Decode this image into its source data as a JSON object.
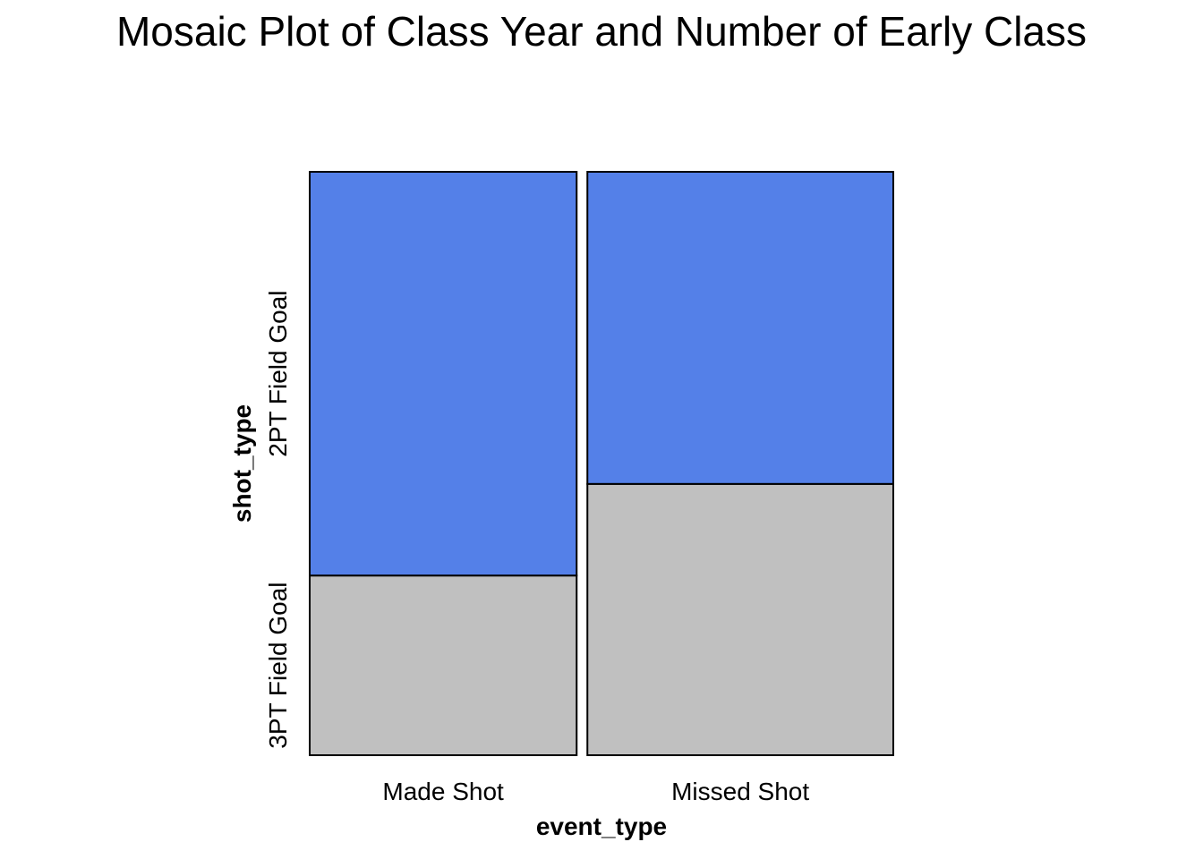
{
  "chart_data": {
    "type": "mosaic",
    "title": "Mosaic Plot of Class Year and Number of Early Class",
    "xlabel": "event_type",
    "ylabel": "shot_type",
    "x_categories": [
      "Made Shot",
      "Missed Shot"
    ],
    "x_proportions": [
      0.466,
      0.534
    ],
    "y_categories": [
      "3PT Field Goal",
      "2PT Field Goal"
    ],
    "conditional_proportions": {
      "Made Shot": {
        "3PT Field Goal": 0.308,
        "2PT Field Goal": 0.692
      },
      "Missed Shot": {
        "3PT Field Goal": 0.465,
        "2PT Field Goal": 0.535
      }
    },
    "colors": {
      "3PT Field Goal": "#c0c0c0",
      "2PT Field Goal": "#5480e8"
    },
    "grid": false,
    "legend": "none"
  }
}
